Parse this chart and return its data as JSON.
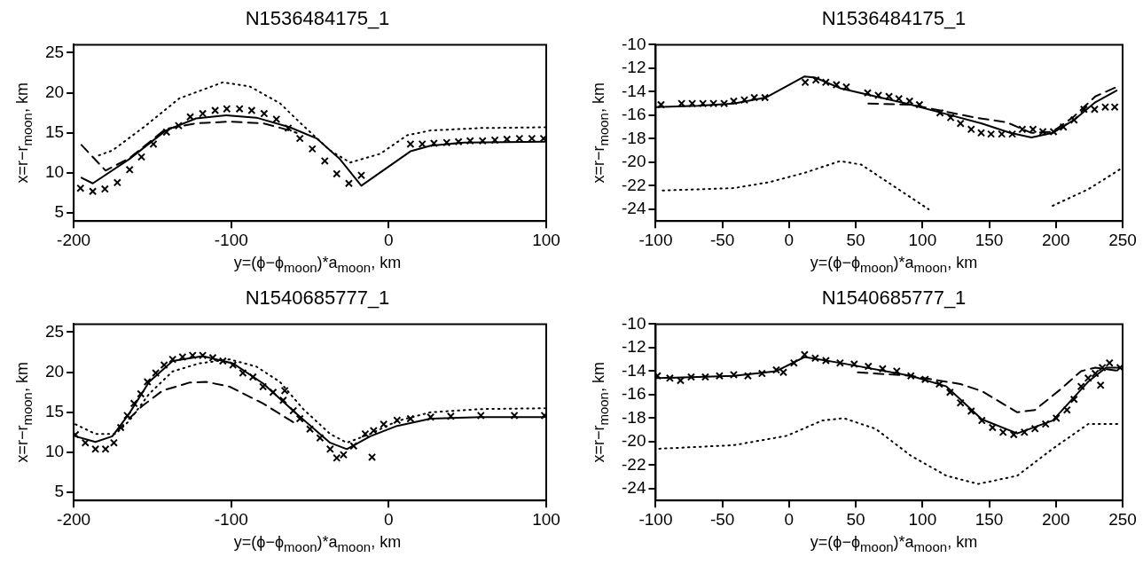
{
  "chart_data": [
    {
      "type": "line",
      "title": "N1536484175_1",
      "xlabel": "y=(ϕ−ϕ$_{moon}$)*a$_{moon}$, km",
      "ylabel": "x=r−r$_{moon}$, km",
      "xlim": [
        -200,
        100
      ],
      "xticks": [
        -200,
        -100,
        0,
        100
      ],
      "ylim": [
        4,
        26
      ],
      "yticks": [
        5,
        10,
        15,
        20,
        25
      ],
      "series": [
        {
          "type": "scatter",
          "marker": "cross",
          "color": "#000000",
          "x": [
            -195.7,
            -187.9,
            -180.2,
            -172.3,
            -164.5,
            -157.0,
            -149.4,
            -141.1,
            -133.4,
            -126.0,
            -118.1,
            -110.2,
            -102.8,
            -94.7,
            -87.0,
            -79.1,
            -71.3,
            -63.8,
            -56.4,
            -48.5,
            -40.6,
            -33.0,
            -25.3,
            -17.4,
            13.8,
            21.3,
            28.7,
            36.8,
            44.3,
            51.7,
            59.6,
            67.4,
            75.1,
            83.0,
            90.9,
            98.3
          ],
          "values": [
            8.1,
            7.7,
            8.0,
            8.8,
            10.4,
            12.0,
            13.6,
            15.1,
            15.9,
            17.0,
            17.4,
            17.8,
            18.0,
            18.0,
            17.8,
            17.4,
            16.7,
            15.6,
            14.3,
            13.0,
            11.5,
            9.9,
            8.7,
            9.7,
            13.6,
            13.6,
            13.7,
            13.8,
            13.9,
            14.0,
            14.0,
            14.1,
            14.2,
            14.3,
            14.3,
            14.3
          ]
        },
        {
          "type": "line",
          "line_style": "solid",
          "color": "#000000",
          "x": [
            -195.1,
            -187.9,
            -164.9,
            -141.5,
            -122.3,
            -103.2,
            -84.0,
            -62.8,
            -45.7,
            -30.9,
            -17.4,
            13.8,
            26.6,
            47.9,
            99
          ],
          "values": [
            9.4,
            8.7,
            11.7,
            15.3,
            16.8,
            17.2,
            16.9,
            15.7,
            14.3,
            11.7,
            8.4,
            12.7,
            13.4,
            13.8,
            13.9
          ]
        },
        {
          "type": "line",
          "line_style": "dashed",
          "color": "#000000",
          "x": [
            -195.1,
            -179.8,
            -164.9,
            -141.5,
            -122.3,
            -101.0,
            -79.8,
            -62.8,
            -58.5
          ],
          "values": [
            13.5,
            10.3,
            11.8,
            15.5,
            16.2,
            16.4,
            16.2,
            15.3,
            15.0
          ]
        },
        {
          "type": "line",
          "line_style": "dotted",
          "color": "#000000",
          "x": [
            -184.0,
            -175.5,
            -154.3,
            -133.0,
            -105.3,
            -88.3,
            -69.1,
            -54.3,
            -37.2,
            -24.5,
            -5.3,
            11.7,
            26.6,
            58.5,
            99
          ],
          "values": [
            12.2,
            12.8,
            15.9,
            19.3,
            21.3,
            20.8,
            18.7,
            15.9,
            12.8,
            11.3,
            12.4,
            14.7,
            15.3,
            15.6,
            15.7
          ]
        }
      ]
    },
    {
      "type": "line",
      "title": "N1536484175_1",
      "xlabel": "y=(ϕ−ϕ$_{moon}$)*a$_{moon}$, km",
      "ylabel": "x=r−r$_{moon}$, km",
      "xlim": [
        -100,
        250
      ],
      "xticks": [
        -100,
        -50,
        0,
        50,
        100,
        150,
        200,
        250
      ],
      "ylim": [
        -25,
        -10
      ],
      "yticks": [
        -24,
        -22,
        -20,
        -18,
        -16,
        -14,
        -12,
        -10
      ],
      "series": [
        {
          "type": "scatter",
          "marker": "cross",
          "color": "#000000",
          "x": [
            -96.0,
            -80.6,
            -72.6,
            -64.6,
            -56.7,
            -48.7,
            -41.5,
            -33.5,
            -26.1,
            -18.1,
            12.1,
            20.1,
            27.5,
            35.5,
            42.9,
            58.9,
            66.9,
            74.9,
            82.3,
            90.3,
            97.7,
            113.1,
            121.1,
            128.5,
            136.5,
            144.0,
            151.4,
            159.4,
            167.3,
            174.8,
            182.8,
            190.2,
            198.2,
            205.6,
            213.6,
            221.0,
            229.0,
            237.0,
            244.1
          ],
          "values": [
            -15.1,
            -15.0,
            -15.0,
            -15.0,
            -15.0,
            -15.0,
            -14.8,
            -14.7,
            -14.5,
            -14.5,
            -13.2,
            -13.0,
            -13.2,
            -13.4,
            -13.6,
            -14.1,
            -14.3,
            -14.4,
            -14.6,
            -14.8,
            -15.1,
            -15.8,
            -16.2,
            -16.7,
            -17.2,
            -17.5,
            -17.6,
            -17.6,
            -17.6,
            -17.2,
            -17.2,
            -17.4,
            -17.4,
            -17.0,
            -16.4,
            -15.5,
            -15.5,
            -15.3,
            -15.3
          ]
        },
        {
          "type": "line",
          "line_style": "solid",
          "color": "#000000",
          "x": [
            -100,
            -68.1,
            -41.5,
            -17.6,
            11.6,
            19.6,
            38.2,
            64.8,
            91.3,
            117.9,
            144.5,
            165.7,
            181.7,
            197.6,
            213.6,
            229.5,
            245.5
          ],
          "values": [
            -15.3,
            -15.2,
            -15.0,
            -14.5,
            -12.7,
            -12.8,
            -13.7,
            -14.4,
            -15.1,
            -15.9,
            -16.7,
            -17.5,
            -17.9,
            -17.5,
            -16.4,
            -14.9,
            -13.9
          ]
        },
        {
          "type": "line",
          "line_style": "dashed",
          "color": "#000000",
          "x": [
            59.4,
            91.3,
            117.9,
            139.2,
            163.1,
            181.7,
            197.6,
            213.6,
            229.5,
            245.5
          ],
          "values": [
            -15.0,
            -15.1,
            -15.7,
            -16.2,
            -16.6,
            -17.5,
            -17.4,
            -16.1,
            -14.4,
            -13.6
          ]
        },
        {
          "type": "line",
          "line_style": "dotted",
          "color": "#000000",
          "x": [
            -94.7,
            -41.5,
            -15.0,
            11.6,
            38.2,
            54.1,
            78.0,
            104.6,
            131.2,
            176.4,
            197.6,
            224.2,
            248.1
          ],
          "values": [
            -22.4,
            -22.2,
            -21.7,
            -20.9,
            -19.9,
            -20.2,
            -22.0,
            -24.0,
            null,
            null,
            -23.7,
            -22.3,
            -20.6
          ]
        }
      ]
    },
    {
      "type": "line",
      "title": "N1540685777_1",
      "xlabel": "y=(ϕ−ϕ$_{moon}$)*a$_{moon}$, km",
      "ylabel": "x=r−r$_{moon}$, km",
      "xlim": [
        -200,
        100
      ],
      "xticks": [
        -200,
        -100,
        0,
        100
      ],
      "ylim": [
        4,
        26
      ],
      "yticks": [
        5,
        10,
        15,
        20,
        25
      ],
      "series": [
        {
          "type": "scatter",
          "marker": "cross",
          "color": "#000000",
          "x": [
            -198.9,
            -192.6,
            -186.2,
            -179.8,
            -174.5,
            -170.2,
            -166.0,
            -161.7,
            -157.4,
            -153.2,
            -147.9,
            -142.6,
            -137.2,
            -130.9,
            -124.5,
            -118.1,
            -111.7,
            -105.3,
            -98.9,
            -92.6,
            -86.2,
            -79.8,
            -73.4,
            -67.0,
            -66.0,
            -60.6,
            -56.4,
            -50.0,
            -43.6,
            -37.2,
            -33.0,
            -28.7,
            -22.3,
            -14.9,
            -10.6,
            -9.6,
            -3.2,
            5.3,
            13.8,
            26.6,
            39.4,
            58.5,
            79.8,
            98.9
          ],
          "values": [
            12.2,
            11.2,
            10.4,
            10.4,
            11.2,
            13.1,
            14.6,
            16.1,
            17.3,
            18.8,
            19.9,
            20.9,
            21.6,
            21.9,
            22.1,
            22.1,
            21.8,
            21.4,
            20.9,
            19.9,
            19.4,
            18.2,
            17.5,
            16.5,
            17.7,
            15.2,
            14.2,
            12.9,
            11.8,
            10.4,
            9.3,
            9.7,
            10.8,
            12.3,
            9.4,
            12.7,
            13.5,
            14.0,
            14.2,
            14.4,
            14.5,
            14.6,
            14.6,
            14.6
          ]
        },
        {
          "type": "line",
          "line_style": "solid",
          "color": "#000000",
          "x": [
            -198.9,
            -186.2,
            -175.5,
            -164.9,
            -152.1,
            -137.2,
            -118.1,
            -98.9,
            -79.8,
            -58.5,
            -37.2,
            -26.6,
            -11.7,
            5.3,
            26.6,
            58.5,
            98.9
          ],
          "values": [
            12.0,
            11.3,
            12.0,
            14.8,
            18.8,
            21.4,
            22.0,
            21.1,
            18.6,
            14.8,
            11.2,
            10.4,
            12.0,
            13.3,
            14.2,
            14.4,
            14.4
          ]
        },
        {
          "type": "line",
          "line_style": "dashed",
          "color": "#000000",
          "x": [
            -164.9,
            -156.4,
            -143.6,
            -126.6,
            -116.0,
            -101.1,
            -79.8,
            -58.5
          ],
          "values": [
            14.2,
            15.8,
            17.7,
            18.7,
            18.8,
            18.2,
            16.1,
            13.5
          ]
        },
        {
          "type": "line",
          "line_style": "dotted",
          "color": "#000000",
          "x": [
            -198.9,
            -186.2,
            -173.4,
            -164.9,
            -152.1,
            -137.2,
            -120.2,
            -101.1,
            -84.0,
            -69.1,
            -54.3,
            -37.2,
            -26.6,
            -11.7,
            5.3,
            26.6,
            58.5,
            98.9
          ],
          "values": [
            13.5,
            12.3,
            12.3,
            13.9,
            17.3,
            20.1,
            21.1,
            21.6,
            20.7,
            18.8,
            15.4,
            12.3,
            11.2,
            12.3,
            13.9,
            15.0,
            15.4,
            15.5
          ]
        }
      ]
    },
    {
      "type": "line",
      "title": "N1540685777_1",
      "xlabel": "y=(ϕ−ϕ$_{moon}$)*a$_{moon}$, km",
      "ylabel": "x=r−r$_{moon}$, km",
      "xlim": [
        -100,
        250
      ],
      "xticks": [
        -100,
        -50,
        0,
        50,
        100,
        150,
        200,
        250
      ],
      "ylim": [
        -25,
        -10
      ],
      "yticks": [
        -24,
        -22,
        -20,
        -18,
        -16,
        -14,
        -12,
        -10
      ],
      "series": [
        {
          "type": "scatter",
          "marker": "cross",
          "color": "#000000",
          "x": [
            -98.7,
            -89.4,
            -81.4,
            -73.4,
            -62.8,
            -52.2,
            -41.5,
            -30.9,
            -20.3,
            -9.6,
            -4.3,
            3.6,
            11.6,
            19.6,
            27.6,
            38.2,
            48.8,
            59.4,
            70.1,
            80.7,
            91.3,
            102.0,
            112.6,
            120.6,
            128.5,
            136.5,
            144.5,
            152.5,
            160.4,
            168.4,
            176.4,
            184.3,
            192.3,
            200.3,
            208.3,
            213.6,
            218.9,
            224.2,
            229.5,
            233.5,
            234.8,
            240.2,
            248.1
          ],
          "values": [
            -14.4,
            -14.6,
            -14.8,
            -14.5,
            -14.5,
            -14.4,
            -14.3,
            -14.4,
            -14.2,
            -13.9,
            -14.1,
            -13.3,
            -12.6,
            -12.9,
            -13.1,
            -13.3,
            -13.4,
            -13.6,
            -13.8,
            -14.0,
            -14.4,
            -14.7,
            -15.1,
            -15.8,
            -16.7,
            -17.4,
            -18.2,
            -18.8,
            -19.2,
            -19.4,
            -19.2,
            -18.9,
            -18.5,
            -18.0,
            -17.3,
            -16.4,
            -15.3,
            -14.6,
            -14.2,
            -15.2,
            -13.7,
            -13.3,
            -13.7
          ]
        },
        {
          "type": "line",
          "line_style": "solid",
          "color": "#000000",
          "x": [
            -100,
            -41.5,
            -9.6,
            11.6,
            38.2,
            91.3,
            117.9,
            144.5,
            171.0,
            197.6,
            224.2,
            237.5,
            248.1
          ],
          "values": [
            -14.6,
            -14.4,
            -14.0,
            -12.8,
            -13.3,
            -14.4,
            -15.3,
            -18.1,
            -19.3,
            -18.2,
            -14.9,
            -13.7,
            -13.7
          ]
        },
        {
          "type": "line",
          "line_style": "dashed",
          "color": "#000000",
          "x": [
            51.5,
            91.3,
            128.5,
            144.5,
            171.0,
            184.3,
            202.9,
            218.9,
            229.5,
            248.1
          ],
          "values": [
            -14.1,
            -14.4,
            -15.1,
            -15.7,
            -17.5,
            -17.3,
            -15.6,
            -14.0,
            -13.7,
            -14.0
          ]
        },
        {
          "type": "line",
          "line_style": "dotted",
          "color": "#000000",
          "x": [
            -97.3,
            -41.5,
            -1.7,
            24.9,
            40.8,
            64.8,
            91.3,
            117.9,
            141.8,
            171.0,
            197.6,
            224.2,
            248.1
          ],
          "values": [
            -20.6,
            -20.3,
            -19.5,
            -18.2,
            -18.0,
            -18.9,
            -21.2,
            -22.9,
            -23.6,
            -22.9,
            -20.6,
            -18.5,
            -18.5
          ]
        }
      ]
    }
  ]
}
